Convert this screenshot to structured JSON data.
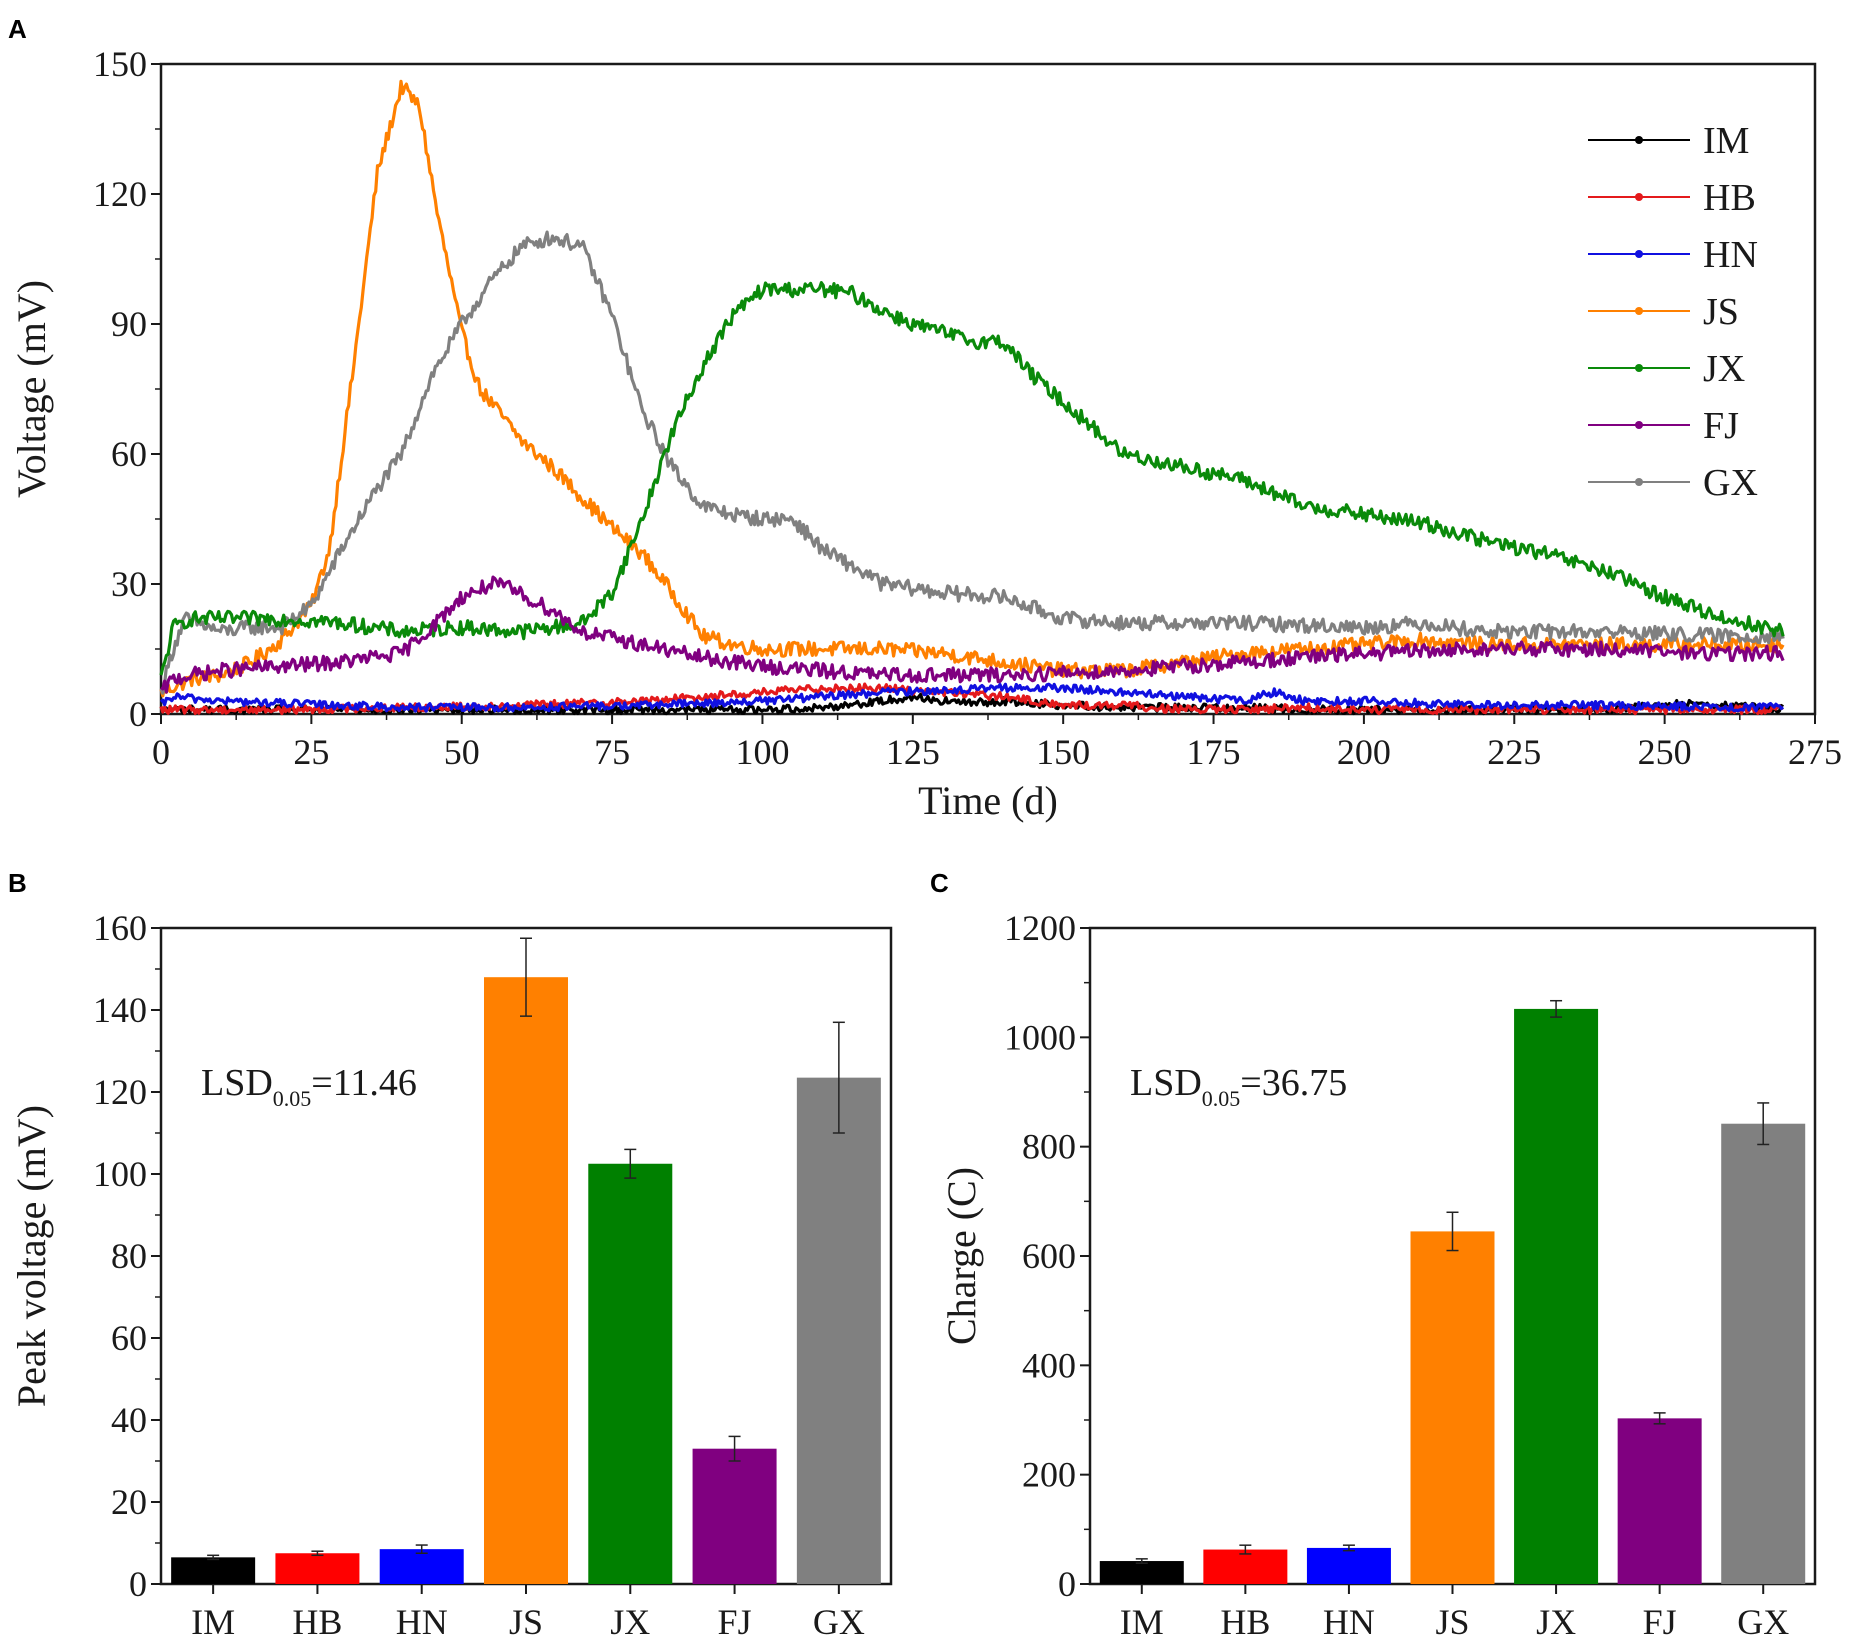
{
  "panels": [
    {
      "id": "A",
      "panel_label": "A",
      "type": "line",
      "xlabel": "Time (d)",
      "ylabel": "Voltage (mV)",
      "xlim": [
        0,
        275
      ],
      "ylim": [
        0,
        150
      ],
      "xticks": [
        0,
        25,
        50,
        75,
        100,
        125,
        150,
        175,
        200,
        225,
        250,
        275
      ],
      "yticks": [
        0,
        30,
        60,
        90,
        120,
        150
      ],
      "legend_position": "top-right",
      "legend": [
        "IM",
        "HB",
        "HN",
        "JS",
        "JX",
        "FJ",
        "GX"
      ],
      "series": [
        {
          "name": "IM",
          "color": "#000000",
          "x": [
            0,
            20,
            40,
            60,
            80,
            100,
            110,
            120,
            125,
            130,
            135,
            140,
            145,
            150,
            160,
            170,
            180,
            190,
            200,
            220,
            240,
            255,
            270
          ],
          "y": [
            1,
            1,
            1,
            1,
            1,
            1,
            1.5,
            3,
            4,
            3,
            2.5,
            3,
            2.5,
            2,
            1.5,
            1.5,
            1.5,
            1,
            1,
            1,
            1,
            2.5,
            1
          ]
        },
        {
          "name": "HB",
          "color": "#e41a1c",
          "x": [
            0,
            20,
            40,
            60,
            80,
            100,
            110,
            120,
            130,
            140,
            150,
            160,
            170,
            180,
            190,
            200,
            220,
            240,
            270
          ],
          "y": [
            1,
            1,
            1.5,
            2,
            3,
            5,
            6,
            6,
            5,
            4,
            2,
            2,
            1,
            1,
            1.5,
            1,
            1,
            1,
            1
          ]
        },
        {
          "name": "HN",
          "color": "#1010e0",
          "x": [
            0,
            2,
            10,
            20,
            30,
            40,
            60,
            80,
            100,
            120,
            140,
            150,
            160,
            180,
            185,
            190,
            200,
            220,
            240,
            270
          ],
          "y": [
            2,
            4,
            3,
            2.5,
            2,
            1.5,
            1.5,
            2,
            3,
            5,
            6,
            6,
            5,
            3,
            5,
            3,
            3,
            2,
            2,
            1.5
          ]
        },
        {
          "name": "JS",
          "color": "#ff8000",
          "x": [
            0,
            5,
            10,
            15,
            20,
            25,
            28,
            32,
            36,
            40,
            43,
            46,
            50,
            53,
            56,
            60,
            65,
            70,
            75,
            80,
            85,
            90,
            95,
            100,
            110,
            120,
            130,
            140,
            150,
            160,
            170,
            180,
            190,
            200,
            210,
            220,
            240,
            260,
            270
          ],
          "y": [
            5,
            8,
            9,
            12,
            17,
            25,
            38,
            80,
            125,
            145,
            140,
            115,
            88,
            75,
            70,
            63,
            57,
            50,
            43,
            37,
            28,
            18,
            16,
            15,
            15,
            15,
            14,
            12,
            10,
            10,
            12,
            14,
            15,
            16,
            17,
            16,
            16,
            16,
            16
          ]
        },
        {
          "name": "JX",
          "color": "#0a8a0a",
          "x": [
            0,
            2,
            5,
            10,
            20,
            30,
            40,
            50,
            60,
            70,
            75,
            80,
            85,
            90,
            95,
            100,
            105,
            110,
            115,
            120,
            125,
            130,
            135,
            140,
            145,
            150,
            155,
            160,
            170,
            180,
            190,
            200,
            210,
            220,
            230,
            240,
            250,
            260,
            270
          ],
          "y": [
            8,
            20,
            22,
            22,
            22,
            21,
            19,
            20,
            19,
            21,
            28,
            45,
            65,
            80,
            92,
            98,
            98,
            98,
            97,
            93,
            90,
            88,
            86,
            86,
            78,
            72,
            66,
            60,
            57,
            54,
            48,
            46,
            44,
            40,
            37,
            33,
            27,
            22,
            19
          ]
        },
        {
          "name": "FJ",
          "color": "#800080",
          "x": [
            0,
            2,
            5,
            10,
            20,
            30,
            40,
            45,
            50,
            55,
            58,
            62,
            65,
            70,
            80,
            90,
            100,
            120,
            140,
            160,
            180,
            200,
            220,
            240,
            255,
            270
          ],
          "y": [
            5,
            8,
            9,
            10,
            11,
            12,
            14,
            20,
            27,
            30,
            29,
            26,
            24,
            19,
            16,
            13,
            11,
            9,
            9,
            10,
            12,
            14,
            15,
            15,
            14,
            14
          ]
        },
        {
          "name": "GX",
          "color": "#808080",
          "x": [
            0,
            2,
            4,
            6,
            10,
            15,
            20,
            25,
            30,
            35,
            40,
            45,
            50,
            55,
            60,
            65,
            70,
            75,
            80,
            85,
            90,
            95,
            100,
            105,
            110,
            120,
            130,
            140,
            150,
            160,
            180,
            200,
            210,
            220,
            240,
            260,
            270
          ],
          "y": [
            5,
            15,
            22,
            21,
            19,
            20,
            20,
            25,
            38,
            50,
            60,
            78,
            90,
            100,
            108,
            110,
            108,
            92,
            70,
            57,
            48,
            46,
            45,
            45,
            38,
            30,
            28,
            27,
            22,
            21,
            21,
            20,
            21,
            19,
            19,
            18,
            18
          ]
        }
      ]
    },
    {
      "id": "B",
      "panel_label": "B",
      "type": "bar",
      "xlabel": "",
      "ylabel": "Peak voltage (mV)",
      "ylim": [
        0,
        160
      ],
      "yticks": [
        0,
        20,
        40,
        60,
        80,
        100,
        120,
        140,
        160
      ],
      "categories": [
        "IM",
        "HB",
        "HN",
        "JS",
        "JX",
        "FJ",
        "GX"
      ],
      "values": [
        6.5,
        7.5,
        8.5,
        148,
        102.5,
        33,
        123.5
      ],
      "errors": [
        0.5,
        0.5,
        1,
        9.5,
        3.5,
        3,
        13.5
      ],
      "colors": [
        "#000000",
        "#ff0000",
        "#0000ff",
        "#ff8000",
        "#008000",
        "#800080",
        "#808080"
      ],
      "annotation": {
        "main": "LSD",
        "sub": "0.05",
        "tail": "=11.46"
      }
    },
    {
      "id": "C",
      "panel_label": "C",
      "type": "bar",
      "xlabel": "",
      "ylabel": "Charge (C)",
      "ylim": [
        0,
        1200
      ],
      "yticks": [
        0,
        200,
        400,
        600,
        800,
        1000,
        1200
      ],
      "categories": [
        "IM",
        "HB",
        "HN",
        "JS",
        "JX",
        "FJ",
        "GX"
      ],
      "values": [
        42,
        63,
        66,
        645,
        1052,
        303,
        842
      ],
      "errors": [
        4,
        8,
        5,
        35,
        15,
        10,
        38
      ],
      "colors": [
        "#000000",
        "#ff0000",
        "#0000ff",
        "#ff8000",
        "#008000",
        "#800080",
        "#808080"
      ],
      "annotation": {
        "main": "LSD",
        "sub": "0.05",
        "tail": "=36.75"
      }
    }
  ]
}
